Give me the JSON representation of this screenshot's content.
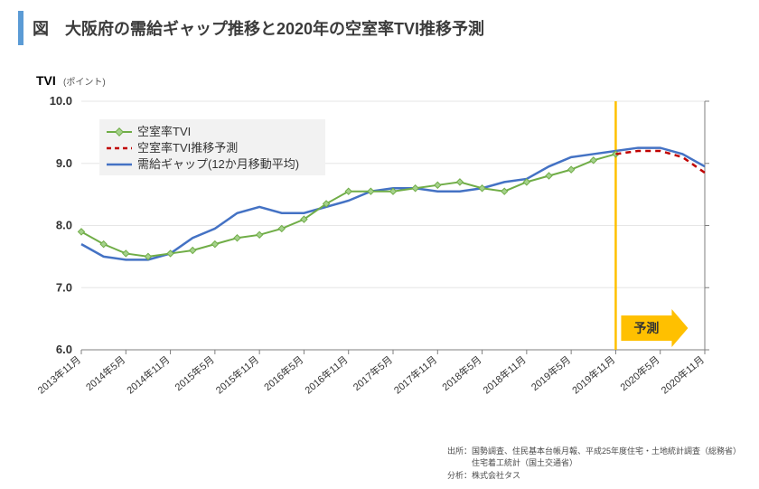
{
  "title": "図　大阪府の需給ギャップ推移と2020年の空室率TVI推移予測",
  "chart": {
    "type": "line",
    "background_color": "#ffffff",
    "grid_color": "#e6e6e6",
    "axis_color": "#7f7f7f",
    "ylim": [
      6.0,
      10.0
    ],
    "ytick_step": 1.0,
    "yticks": [
      "10.0",
      "9.0",
      "8.0",
      "7.0",
      "6.0"
    ],
    "x_labels": [
      "2013年11月",
      "2014年5月",
      "2014年11月",
      "2015年5月",
      "2015年11月",
      "2016年5月",
      "2016年11月",
      "2017年5月",
      "2017年11月",
      "2018年5月",
      "2018年11月",
      "2019年5月",
      "2019年11月",
      "2020年5月",
      "2020年11月"
    ],
    "y_axis_title": "TVI",
    "y_axis_sub": "(ポイント)",
    "label_rotation_deg": -40,
    "legend_bg": "#f2f2f2",
    "forecast_box_color": "#ffc000",
    "marker_line_color": "#ffc000"
  },
  "series": {
    "tvi": {
      "label": "空室率TVI",
      "color": "#70ad47",
      "marker_fill": "#a5d18c",
      "marker_size": 4,
      "data": [
        7.9,
        7.55,
        7.55,
        7.7,
        7.85,
        8.1,
        8.55,
        8.55,
        8.65,
        8.6,
        8.7,
        8.9,
        9.15,
        null,
        null
      ]
    },
    "forecast": {
      "label": "空室率TVI推移予測",
      "color": "#c00000",
      "data": [
        null,
        null,
        null,
        null,
        null,
        null,
        null,
        null,
        null,
        null,
        null,
        null,
        9.15,
        9.2,
        8.85
      ]
    },
    "gap": {
      "label": "需給ギャップ(12か月移動平均)",
      "color": "#4472c4",
      "data": [
        7.7,
        7.45,
        7.55,
        7.95,
        8.3,
        8.2,
        8.4,
        8.6,
        8.55,
        8.6,
        8.75,
        9.1,
        9.2,
        9.25,
        8.95
      ]
    }
  },
  "intermediate": {
    "tvi": [
      7.9,
      7.7,
      7.55,
      7.5,
      7.55,
      7.6,
      7.7,
      7.8,
      7.85,
      7.95,
      8.1,
      8.35,
      8.55,
      8.55,
      8.55,
      8.6,
      8.65,
      8.7,
      8.6,
      8.55,
      8.7,
      8.8,
      8.9,
      9.05,
      9.15
    ],
    "forecast": [
      9.15,
      9.2,
      9.2,
      9.1,
      8.85
    ],
    "gap": [
      7.7,
      7.5,
      7.45,
      7.45,
      7.55,
      7.8,
      7.95,
      8.2,
      8.3,
      8.2,
      8.2,
      8.3,
      8.4,
      8.55,
      8.6,
      8.6,
      8.55,
      8.55,
      8.6,
      8.7,
      8.75,
      8.95,
      9.1,
      9.15,
      9.2,
      9.25,
      9.25,
      9.15,
      8.95
    ]
  },
  "annotations": {
    "forecast_label": "予測"
  },
  "sources": {
    "line1": "出所：国勢調査、住民基本台帳月報、平成25年度住宅・土地統計調査（総務省）",
    "line2": "　　　住宅着工統計（国土交通省）",
    "line3": "分析：株式会社タス"
  }
}
